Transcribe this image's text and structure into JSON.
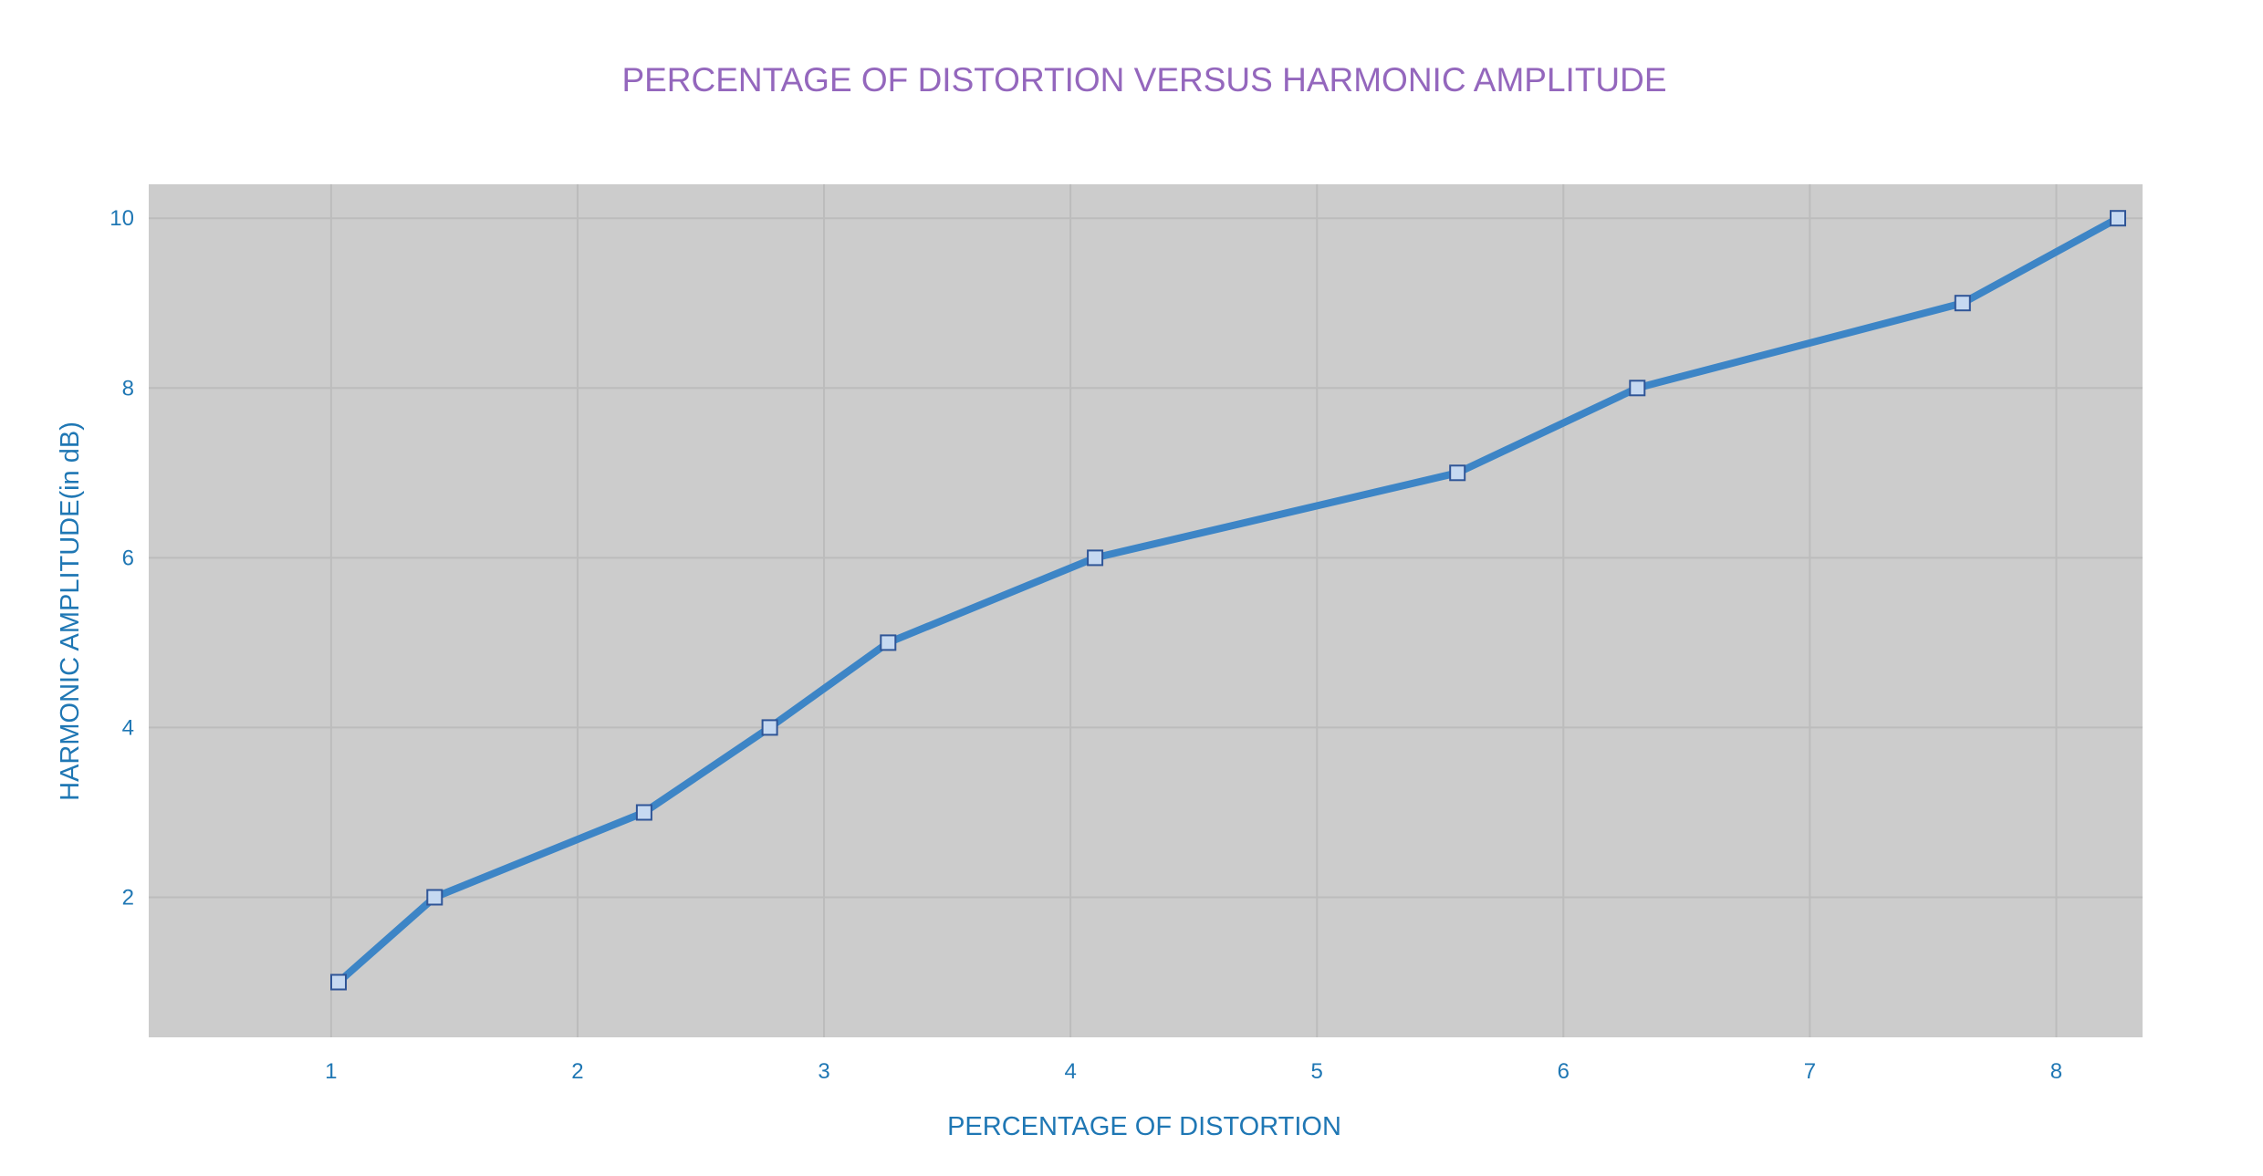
{
  "chart_data": {
    "type": "line",
    "title": "PERCENTAGE OF DISTORTION VERSUS HARMONIC AMPLITUDE",
    "xlabel": "PERCENTAGE OF DISTORTION",
    "ylabel": "HARMONIC AMPLITUDE(in dB)",
    "xlim": [
      0.26,
      8.35
    ],
    "ylim": [
      0.35,
      10.4
    ],
    "x_ticks": [
      1,
      2,
      3,
      4,
      5,
      6,
      7,
      8
    ],
    "y_ticks": [
      2,
      4,
      6,
      8,
      10
    ],
    "grid": true,
    "legend": "none",
    "series": [
      {
        "x": [
          1.03,
          1.42,
          2.27,
          2.78,
          3.26,
          4.1,
          5.57,
          6.3,
          7.62,
          8.25
        ],
        "y": [
          1,
          2,
          3,
          4,
          5,
          6,
          7,
          8,
          9,
          10
        ]
      }
    ],
    "colors": {
      "title": "#9467bd",
      "axis_text": "#1f77b4",
      "plot_background": "#cccccc",
      "grid": "#bcbcbc",
      "line": "#3d85c6",
      "marker_fill": "#c6d9f1",
      "marker_stroke": "#2f5597"
    }
  }
}
